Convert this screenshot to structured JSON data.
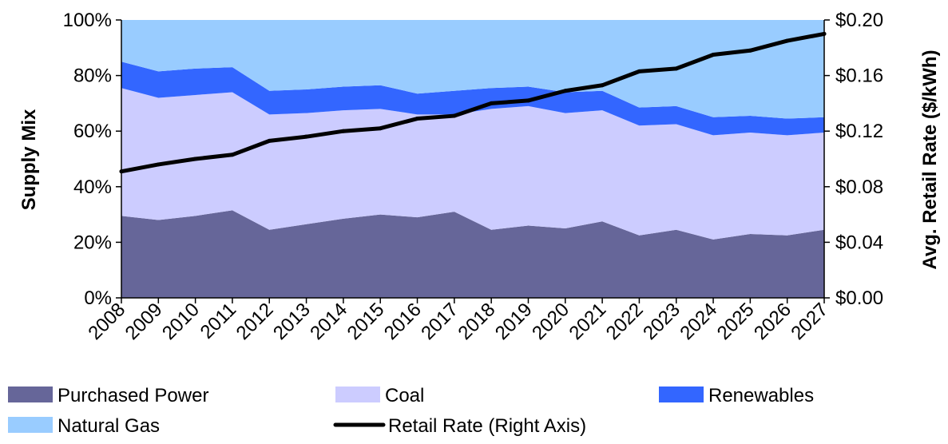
{
  "chart_data": {
    "type": "area",
    "title": "",
    "categories": [
      "2008",
      "2009",
      "2010",
      "2011",
      "2012",
      "2013",
      "2014",
      "2015",
      "2016",
      "2017",
      "2018",
      "2019",
      "2020",
      "2021",
      "2022",
      "2023",
      "2024",
      "2025",
      "2026",
      "2027"
    ],
    "series": [
      {
        "name": "Purchased Power",
        "kind": "area",
        "axis": "left",
        "color": "#666699",
        "values": [
          29.5,
          28,
          29.5,
          31.5,
          24.5,
          26.5,
          28.5,
          30,
          29,
          31,
          24.5,
          26,
          25,
          27.5,
          22.5,
          24.5,
          21,
          23,
          22.5,
          24.5
        ]
      },
      {
        "name": "Coal",
        "kind": "area",
        "axis": "left",
        "color": "#ccccff",
        "values": [
          46,
          44,
          43.5,
          42.5,
          41.5,
          40,
          39,
          38,
          37,
          35,
          43.5,
          43,
          41.5,
          40,
          39.5,
          38,
          37.5,
          36.5,
          36,
          35
        ]
      },
      {
        "name": "Renewables",
        "kind": "area",
        "axis": "left",
        "color": "#3366ff",
        "values": [
          9.5,
          9.5,
          9.5,
          9,
          8.5,
          8.5,
          8.5,
          8.5,
          7.5,
          8.5,
          7.5,
          7,
          7.5,
          7,
          6.5,
          6.5,
          6.5,
          6,
          6,
          5.5
        ]
      },
      {
        "name": "Natural Gas",
        "kind": "area",
        "axis": "left",
        "color": "#99ccff",
        "values": [
          15,
          18.5,
          17.5,
          17,
          25.5,
          25,
          24,
          23.5,
          26.5,
          25.5,
          24.5,
          24,
          26,
          25.5,
          31.5,
          31,
          35,
          34.5,
          35.5,
          35
        ]
      },
      {
        "name": "Retail Rate (Right Axis)",
        "kind": "line",
        "axis": "right",
        "color": "#000000",
        "values": [
          0.091,
          0.096,
          0.1,
          0.103,
          0.113,
          0.116,
          0.12,
          0.122,
          0.129,
          0.131,
          0.14,
          0.142,
          0.149,
          0.153,
          0.163,
          0.165,
          0.175,
          0.178,
          0.185,
          0.19
        ]
      }
    ],
    "ylabel": "Supply Mix",
    "y2label": "Avg. Retail Rate ($/kWh)",
    "ylim": [
      0,
      100
    ],
    "y2lim": [
      0,
      0.2
    ],
    "yticks": [
      "0%",
      "20%",
      "40%",
      "60%",
      "80%",
      "100%"
    ],
    "y2ticks": [
      "$0.00",
      "$0.04",
      "$0.08",
      "$0.12",
      "$0.16",
      "$0.20"
    ],
    "grid": false,
    "legend_position": "bottom"
  }
}
